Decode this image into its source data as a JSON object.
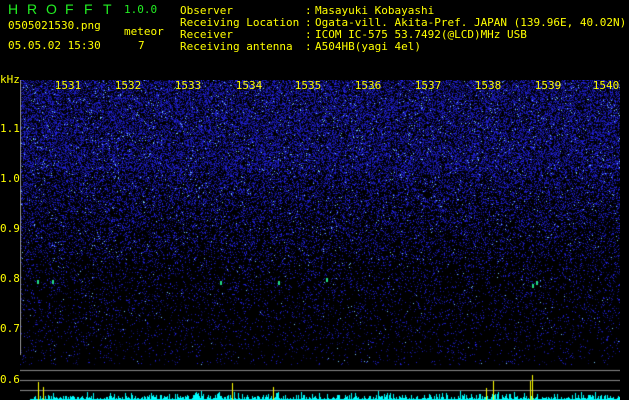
{
  "header": {
    "title_letters": [
      "H",
      "R",
      "O",
      "F",
      "F",
      "T"
    ],
    "version": "1.0.0",
    "filename": "0505021530.png",
    "datetime": "05.05.02 15:30",
    "meteor_label": "meteor",
    "meteor_count": "7"
  },
  "info": [
    {
      "label": "Observer",
      "value": "Masayuki Kobayashi"
    },
    {
      "label": "Receiving Location",
      "value": "Ogata-vill. Akita-Pref. JAPAN (139.96E, 40.02N)"
    },
    {
      "label": "Receiver",
      "value": "ICOM IC-575 53.7492(@LCD)MHz USB"
    },
    {
      "label": "Receiving antenna",
      "value": "A504HB(yagi 4el)"
    }
  ],
  "spectrogram": {
    "y_unit": "kHz",
    "y_ticks": [
      "1.1",
      "1.0",
      "0.9",
      "0.8",
      "0.7",
      "0.6"
    ],
    "x_ticks": [
      "1531",
      "1532",
      "1533",
      "1534",
      "1535",
      "1536",
      "1537",
      "1538",
      "1539",
      "1540"
    ],
    "colors": {
      "background": "#000000",
      "signal": "#2222ff",
      "meteor": "#00ffff",
      "count_bar": "#00ffff",
      "meteor_bar": "#ffff00",
      "grid": "#888888",
      "label": "#ffff00"
    }
  }
}
